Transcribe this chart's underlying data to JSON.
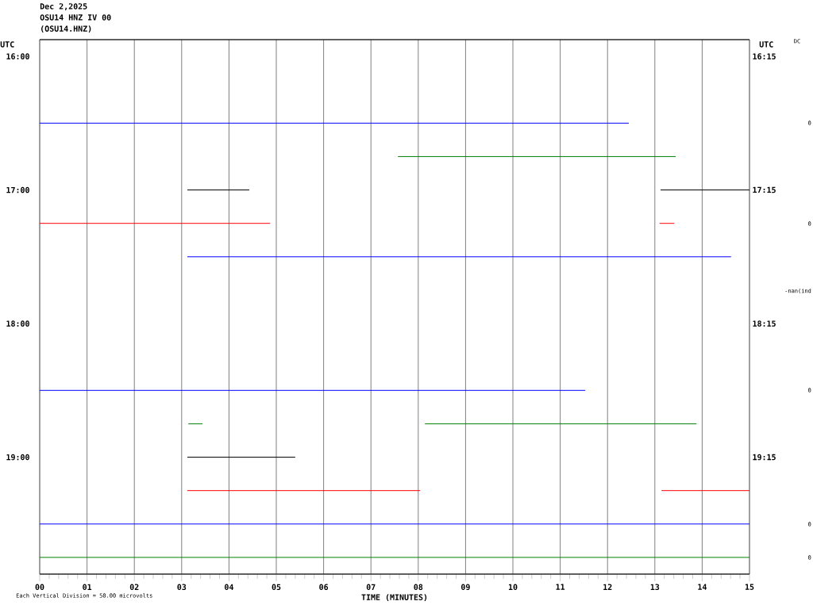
{
  "chart_data": {
    "type": "line",
    "title": "Dec 2,2025",
    "subtitle": "OSU14 HNZ IV 00",
    "annotations": [
      "(OSU14.HNZ)",
      "Each Vertical Division =   50.00 microvolts",
      "DC",
      "0",
      "0",
      "-nan(ind",
      "0",
      "0",
      "0"
    ],
    "xlabel": "TIME (MINUTES)",
    "ylabel": "UTC",
    "y2label": "UTC",
    "xlim": [
      0,
      15
    ],
    "xticks": [
      {
        "value": 0,
        "label": "00"
      },
      {
        "value": 1,
        "label": "01"
      },
      {
        "value": 2,
        "label": "02"
      },
      {
        "value": 3,
        "label": "03"
      },
      {
        "value": 4,
        "label": "04"
      },
      {
        "value": 5,
        "label": "05"
      },
      {
        "value": 6,
        "label": "06"
      },
      {
        "value": 7,
        "label": "07"
      },
      {
        "value": 8,
        "label": "08"
      },
      {
        "value": 9,
        "label": "09"
      },
      {
        "value": 10,
        "label": "10"
      },
      {
        "value": 11,
        "label": "11"
      },
      {
        "value": 12,
        "label": "12"
      },
      {
        "value": 13,
        "label": "13"
      },
      {
        "value": 14,
        "label": "14"
      },
      {
        "value": 15,
        "label": "15"
      }
    ],
    "ylim": [
      19.875,
      15.875
    ],
    "yticks": [
      {
        "value": 16,
        "label": "16:00"
      },
      {
        "value": 17,
        "label": "17:00"
      },
      {
        "value": 18,
        "label": "18:00"
      },
      {
        "value": 19,
        "label": "19:00"
      }
    ],
    "y2lim": [
      20.125,
      16.125
    ],
    "y2ticks": [
      {
        "value": 16.25,
        "label": "16:15"
      },
      {
        "value": 17.25,
        "label": "17:15"
      },
      {
        "value": 18.25,
        "label": "18:15"
      },
      {
        "value": 19.25,
        "label": "19:15"
      }
    ],
    "grid": "x",
    "series": [
      {
        "color": "#0000ff",
        "x": [
          0,
          12.45
        ],
        "values": [
          16.5,
          16.5
        ]
      },
      {
        "color": "#008000",
        "x": [
          7.57,
          13.44
        ],
        "values": [
          16.75,
          16.75
        ]
      },
      {
        "color": "#000000",
        "x": [
          3.12,
          4.43
        ],
        "values": [
          17,
          17
        ]
      },
      {
        "color": "#000000",
        "x": [
          13.12,
          15
        ],
        "values": [
          17,
          17
        ]
      },
      {
        "color": "#ff0000",
        "x": [
          0,
          4.87
        ],
        "values": [
          17.25,
          17.25
        ]
      },
      {
        "color": "#ff0000",
        "x": [
          13.1,
          13.41
        ],
        "values": [
          17.25,
          17.25
        ]
      },
      {
        "color": "#0000ff",
        "x": [
          3.12,
          14.61
        ],
        "values": [
          17.5,
          17.5
        ]
      },
      {
        "color": "#0000ff",
        "x": [
          0,
          11.53
        ],
        "values": [
          18.5,
          18.5
        ]
      },
      {
        "color": "#008000",
        "x": [
          3.14,
          3.44
        ],
        "values": [
          18.75,
          18.75
        ]
      },
      {
        "color": "#008000",
        "x": [
          8.14,
          13.88
        ],
        "values": [
          18.75,
          18.75
        ]
      },
      {
        "color": "#000000",
        "x": [
          3.12,
          5.4
        ],
        "values": [
          19,
          19
        ]
      },
      {
        "color": "#ff0000",
        "x": [
          3.12,
          8.04
        ],
        "values": [
          19.25,
          19.25
        ]
      },
      {
        "color": "#ff0000",
        "x": [
          13.14,
          15
        ],
        "values": [
          19.25,
          19.25
        ]
      },
      {
        "color": "#0000ff",
        "x": [
          0,
          15
        ],
        "values": [
          19.5,
          19.5
        ]
      },
      {
        "color": "#008000",
        "x": [
          0,
          15
        ],
        "values": [
          19.75,
          19.75
        ]
      }
    ]
  }
}
